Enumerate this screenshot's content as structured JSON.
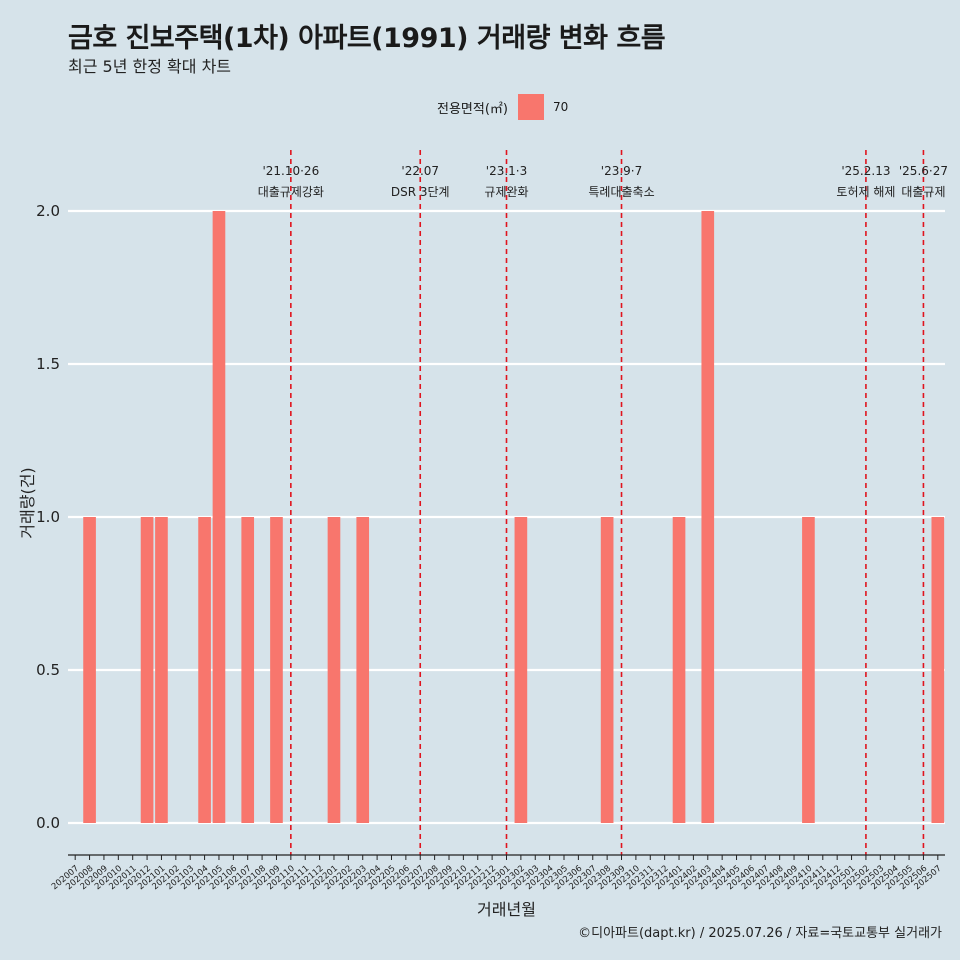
{
  "header": {
    "title": "금호 진보주택(1차) 아파트(1991) 거래량 변화 흐름",
    "subtitle": "최근 5년 한정 확대 차트"
  },
  "legend": {
    "title": "전용면적(㎡)",
    "label": "70",
    "color": "#f8766d"
  },
  "caption": "©디아파트(dapt.kr) / 2025.07.26 / 자료=국토교통부 실거래가",
  "chart_data": {
    "type": "bar",
    "xlabel": "거래년월",
    "ylabel": "거래량(건)",
    "ylim": [
      0,
      2
    ],
    "yticks": [
      "0.0",
      "0.5",
      "1.0",
      "1.5",
      "2.0"
    ],
    "grid": true,
    "legend_position": "top",
    "bar_color": "#f8766d",
    "categories": [
      "202007",
      "202008",
      "202009",
      "202010",
      "202011",
      "202012",
      "202101",
      "202102",
      "202103",
      "202104",
      "202105",
      "202106",
      "202107",
      "202108",
      "202109",
      "202110",
      "202111",
      "202112",
      "202201",
      "202202",
      "202203",
      "202204",
      "202205",
      "202206",
      "202207",
      "202208",
      "202209",
      "202210",
      "202211",
      "202212",
      "202301",
      "202302",
      "202303",
      "202304",
      "202305",
      "202306",
      "202307",
      "202308",
      "202309",
      "202310",
      "202311",
      "202312",
      "202401",
      "202402",
      "202403",
      "202404",
      "202405",
      "202406",
      "202407",
      "202408",
      "202409",
      "202410",
      "202411",
      "202412",
      "202501",
      "202502",
      "202503",
      "202504",
      "202505",
      "202506",
      "202507"
    ],
    "series": [
      {
        "name": "70",
        "values": {
          "202008": 1,
          "202012": 1,
          "202101": 1,
          "202104": 1,
          "202105": 2,
          "202107": 1,
          "202109": 1,
          "202201": 1,
          "202203": 1,
          "202302": 1,
          "202308": 1,
          "202401": 1,
          "202403": 2,
          "202410": 1,
          "202507": 1
        }
      }
    ],
    "annotations": [
      {
        "x": "202110",
        "date": "'21.10·26",
        "label": "대출규제강화"
      },
      {
        "x": "202207",
        "date": "'22.07",
        "label": "DSR 3단계"
      },
      {
        "x": "202301",
        "date": "'23.1·3",
        "label": "규제완화"
      },
      {
        "x": "202309",
        "date": "'23.9·7",
        "label": "특례대출축소"
      },
      {
        "x": "202502",
        "date": "'25.2.13",
        "label": "토허제 해제"
      },
      {
        "x": "202506",
        "date": "'25.6·27",
        "label": "대출규제"
      }
    ]
  }
}
